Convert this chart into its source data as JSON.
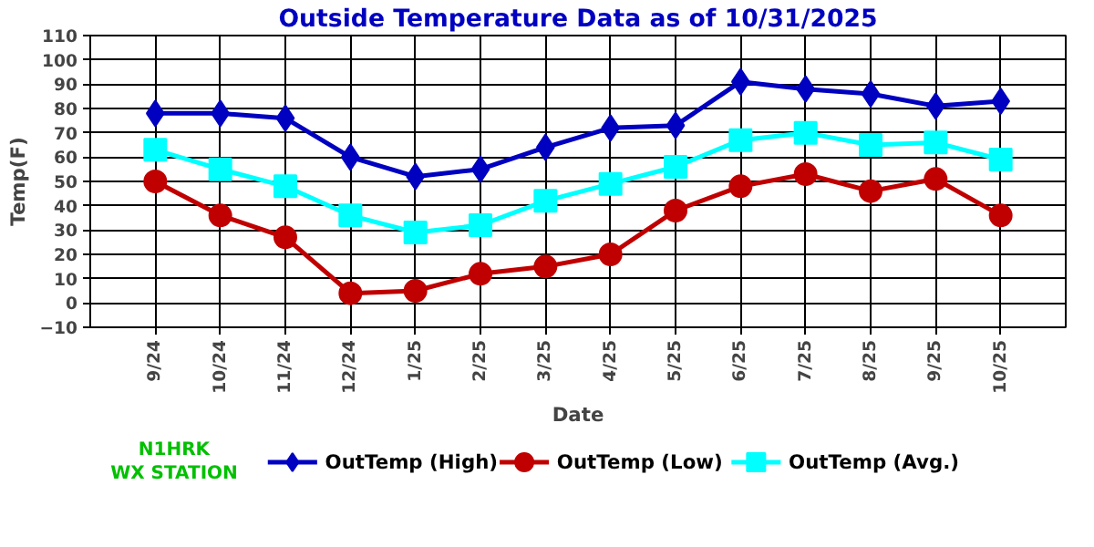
{
  "chart_data": {
    "type": "line",
    "title": "Outside Temperature Data as of 10/31/2025",
    "xlabel": "Date",
    "ylabel": "Temp(F)",
    "categories": [
      "9/24",
      "10/24",
      "11/24",
      "12/24",
      "1/25",
      "2/25",
      "3/25",
      "4/25",
      "5/25",
      "6/25",
      "7/25",
      "8/25",
      "9/25",
      "10/25"
    ],
    "series": [
      {
        "name": "OutTemp (High)",
        "color": "#0000c0",
        "marker": "diamond",
        "values": [
          78,
          78,
          76,
          60,
          52,
          55,
          64,
          72,
          73,
          91,
          88,
          86,
          81,
          83
        ]
      },
      {
        "name": "OutTemp (Low)",
        "color": "#c00000",
        "marker": "circle",
        "values": [
          50,
          36,
          27,
          4,
          5,
          12,
          15,
          20,
          38,
          48,
          53,
          46,
          51,
          36
        ]
      },
      {
        "name": "OutTemp (Avg.)",
        "color": "#00ffff",
        "marker": "square",
        "values": [
          63,
          55,
          48,
          36,
          29,
          32,
          42,
          49,
          56,
          67,
          70,
          65,
          66,
          59
        ]
      }
    ],
    "ylim": [
      -10,
      110
    ],
    "yticks": [
      -10,
      0,
      10,
      20,
      30,
      40,
      50,
      60,
      70,
      80,
      90,
      100,
      110
    ],
    "grid": true,
    "legend": "bottom",
    "line_style": "solid",
    "annotations": [
      "N1HRK\nWX STATION"
    ]
  }
}
